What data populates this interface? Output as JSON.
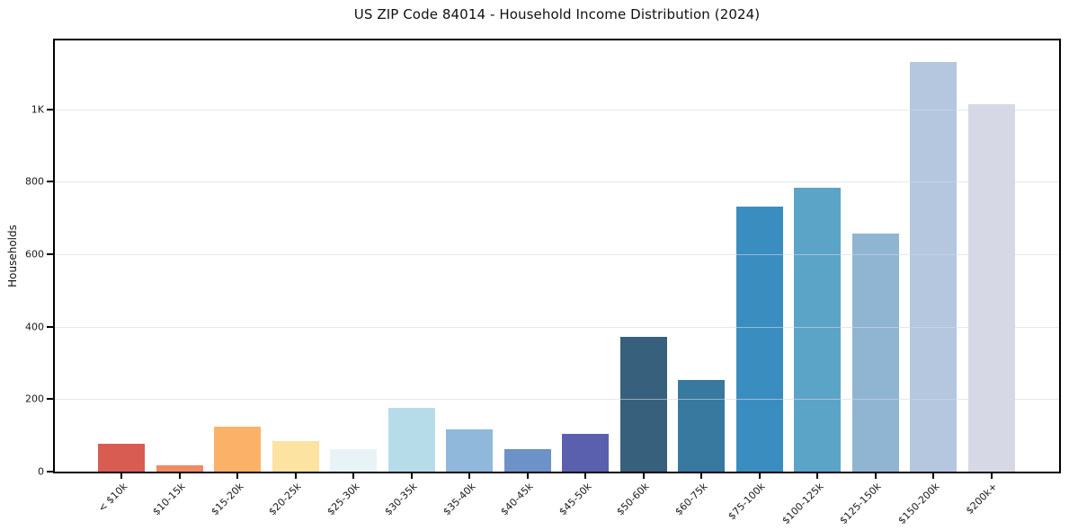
{
  "chart_data": {
    "type": "bar",
    "title": "US ZIP Code 84014 - Household Income Distribution (2024)",
    "xlabel": "",
    "ylabel": "Households",
    "categories": [
      "< $10k",
      "$10-15k",
      "$15-20k",
      "$20-25k",
      "$25-30k",
      "$30-35k",
      "$35-40k",
      "$40-45k",
      "$45-50k",
      "$50-60k",
      "$60-75k",
      "$75-100k",
      "$100-125k",
      "$125-150k",
      "$150-200k",
      "$200k+"
    ],
    "values": [
      78,
      18,
      123,
      85,
      63,
      176,
      117,
      63,
      105,
      372,
      254,
      732,
      784,
      657,
      1130,
      1015
    ],
    "bar_colors": [
      "#d95c52",
      "#ef8a62",
      "#fbb268",
      "#fde3a1",
      "#e8f3f8",
      "#b6dcea",
      "#8fb8da",
      "#6c92c7",
      "#5a5fae",
      "#36607b",
      "#37799f",
      "#3a8dbf",
      "#5ba4c8",
      "#8fb5d3",
      "#b4c7de",
      "#d6d8e5"
    ],
    "ylim": [
      0,
      1190
    ],
    "yticks": [
      0,
      200,
      400,
      600,
      800,
      1000
    ],
    "ytick_labels": [
      "0",
      "200",
      "400",
      "600",
      "800",
      "1K"
    ],
    "grid": "horizontal, light, drawn over bars",
    "legend_position": "none"
  },
  "colors": {
    "background": "#ffffff",
    "axis": "#000000",
    "grid": "#d4d8e8",
    "text": "#1a1a1a"
  }
}
